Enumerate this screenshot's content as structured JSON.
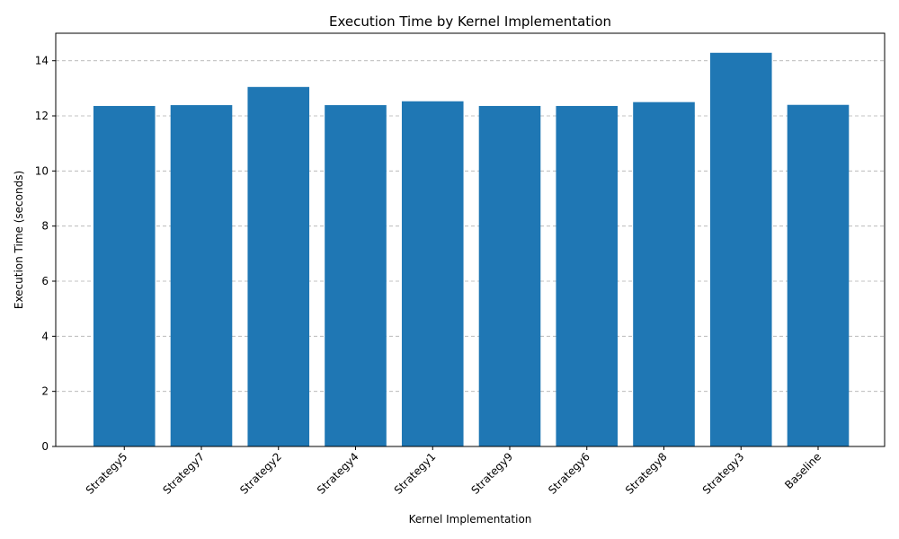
{
  "chart_data": {
    "type": "bar",
    "title": "Execution Time by Kernel Implementation",
    "xlabel": "Kernel Implementation",
    "ylabel": "Execution Time (seconds)",
    "categories": [
      "Strategy5",
      "Strategy7",
      "Strategy2",
      "Strategy4",
      "Strategy1",
      "Strategy9",
      "Strategy6",
      "Strategy8",
      "Strategy3",
      "Baseline"
    ],
    "values": [
      12.36,
      12.39,
      13.05,
      12.39,
      12.53,
      12.36,
      12.36,
      12.5,
      14.29,
      12.4
    ],
    "ylim": [
      0,
      15
    ],
    "yticks": [
      0,
      2,
      4,
      6,
      8,
      10,
      12,
      14
    ],
    "ytick_labels": [
      "0",
      "2",
      "4",
      "6",
      "8",
      "10",
      "12",
      "14"
    ],
    "grid": "y-dashed",
    "xtick_rotation": 45,
    "colors": {
      "bar": "#1f77b4",
      "grid": "#b0b0b0"
    }
  }
}
